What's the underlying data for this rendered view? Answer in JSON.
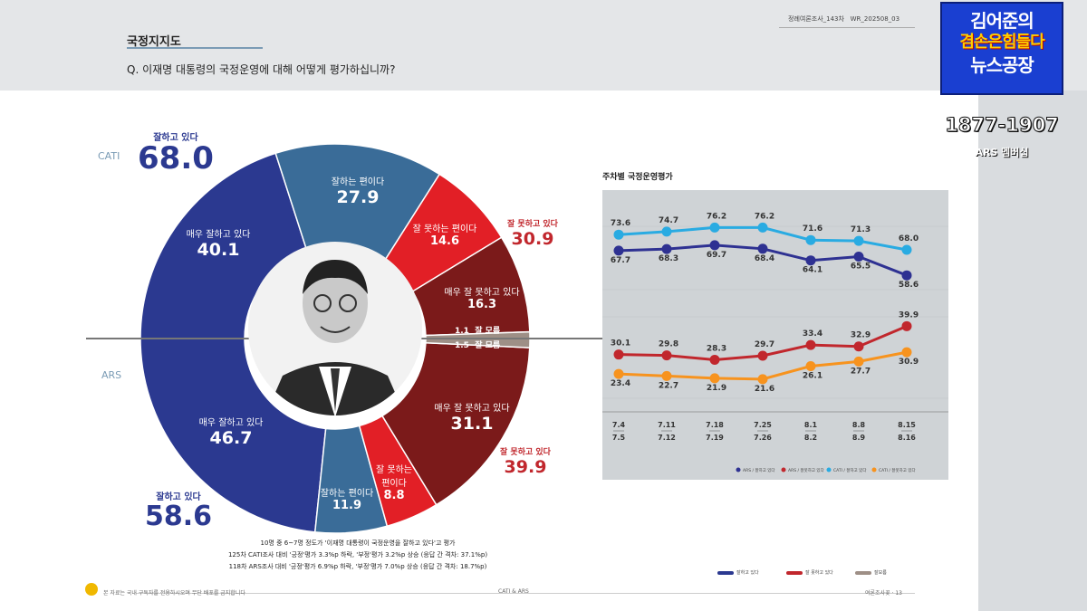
{
  "header": {
    "section_title": "국정지지도",
    "question": "Q. 이재명 대통령의 국정운영에 대해 어떻게 평가하십니까?",
    "survey_round": "정례여론조사_143차",
    "doc_code": "WR_202508_03"
  },
  "broadcast": {
    "brand_line1": "김어준의",
    "brand_line2": "겸손은힘들다",
    "brand_line3": "뉴스공장",
    "phone": "1877-1907",
    "phone_label": "ARS 멤버십"
  },
  "donut": {
    "method_top": "CATI",
    "method_bottom": "ARS",
    "cati_positive": {
      "label": "잘하고 있다",
      "value": "68.0"
    },
    "cati_negative": {
      "label": "잘 못하고 있다",
      "value": "30.9"
    },
    "ars_positive": {
      "label": "잘하고 있다",
      "value": "58.6"
    },
    "ars_negative": {
      "label": "잘 못하고 있다",
      "value": "39.9"
    },
    "cati_segments": [
      {
        "label": "매우 잘하고 있다",
        "value": "40.1"
      },
      {
        "label": "잘하는 편이다",
        "value": "27.9"
      },
      {
        "label": "잘 못하는 편이다",
        "value": "14.6"
      },
      {
        "label": "매우 잘 못하고 있다",
        "value": "16.3"
      },
      {
        "label": "잘 모름",
        "value": "1.1"
      }
    ],
    "ars_segments": [
      {
        "label": "매우 잘하고 있다",
        "value": "46.7"
      },
      {
        "label": "잘하는 편이다",
        "value": "11.9"
      },
      {
        "label": "잘 못하는 편이다",
        "value": "8.8"
      },
      {
        "label": "매우 잘 못하고 있다",
        "value": "31.1"
      },
      {
        "label": "잘 모름",
        "value": "1.5"
      }
    ],
    "ars_small_label_line1": "잘 못하는",
    "ars_small_label_line2": "편이다"
  },
  "notes": {
    "line1": "10명 중 6~7명 정도가 '이재명 대통령이 국정운영을 잘하고 있다'고 평가",
    "line2": "125차 CATI조사 대비 '긍정'평가 3.3%p 하락, '부정'평가 3.2%p 상승 (응답 간 격차: 37.1%p)",
    "line3": "118차 ARS조사 대비 '긍정'평가 6.9%p 하락, '부정'평가 7.0%p 상승 (응답 간 격차: 18.7%p)"
  },
  "footer": {
    "left": "본 자료는 국내 구독자를 전용하시오며 무단 배포를 금지합니다",
    "center": "CATI & ARS",
    "right": "여론조사꽃 · 13"
  },
  "bottom_legend": [
    "잘하고 있다",
    "잘 못하고 있다",
    "잘모름"
  ],
  "chart_data": {
    "type": "line",
    "title": "주차별 국정운영평가",
    "categories": [
      "7.4\n7.5",
      "7.11\n7.12",
      "7.18\n7.19",
      "7.25\n7.26",
      "8.1\n8.2",
      "8.8\n8.9",
      "8.15\n8.16"
    ],
    "category_top": [
      "7.4",
      "7.11",
      "7.18",
      "7.25",
      "8.1",
      "8.8",
      "8.15"
    ],
    "category_bottom": [
      "7.5",
      "7.12",
      "7.19",
      "7.26",
      "8.2",
      "8.9",
      "8.16"
    ],
    "ylim": [
      0,
      100
    ],
    "series": [
      {
        "name": "ARS / 잘하고 있다",
        "color": "#2e3192",
        "values": [
          67.7,
          68.3,
          69.7,
          68.4,
          64.1,
          65.5,
          58.6
        ]
      },
      {
        "name": "ARS / 잘못하고 있다",
        "color": "#c1272d",
        "values": [
          30.1,
          29.8,
          28.3,
          29.7,
          33.4,
          32.9,
          39.9
        ]
      },
      {
        "name": "CATI / 잘하고 있다",
        "color": "#29abe2",
        "values": [
          73.6,
          74.7,
          76.2,
          76.2,
          71.6,
          71.3,
          68.0
        ]
      },
      {
        "name": "CATI / 잘못하고 있다",
        "color": "#f7931e",
        "values": [
          23.4,
          22.7,
          21.9,
          21.6,
          26.1,
          27.7,
          30.9
        ]
      }
    ]
  },
  "colors": {
    "navy": "#2b3990",
    "steel": "#3a6c98",
    "red": "#e21f26",
    "darkred": "#7b1a1a",
    "gray": "#9e8f86"
  }
}
